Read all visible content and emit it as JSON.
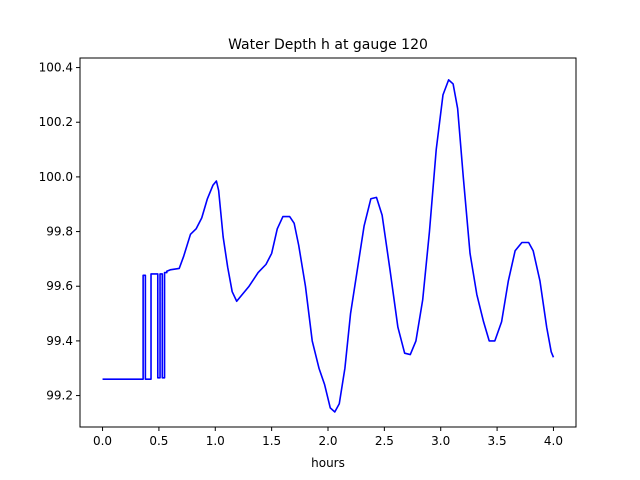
{
  "chart_data": {
    "type": "line",
    "title": "Water Depth h at gauge 120",
    "xlabel": "hours",
    "ylabel": "",
    "xlim": [
      -0.2,
      4.2
    ],
    "ylim": [
      99.085,
      100.435
    ],
    "xticks": [
      0.0,
      0.5,
      1.0,
      1.5,
      2.0,
      2.5,
      3.0,
      3.5,
      4.0
    ],
    "xtick_labels": [
      "0.0",
      "0.5",
      "1.0",
      "1.5",
      "2.0",
      "2.5",
      "3.0",
      "3.5",
      "4.0"
    ],
    "yticks": [
      99.2,
      99.4,
      99.6,
      99.8,
      100.0,
      100.2,
      100.4
    ],
    "ytick_labels": [
      "99.2",
      "99.4",
      "99.6",
      "99.8",
      "100.0",
      "100.2",
      "100.4"
    ],
    "grid": false,
    "series": [
      {
        "color": "#0000ff",
        "x": [
          0.0,
          0.36,
          0.36,
          0.38,
          0.38,
          0.43,
          0.43,
          0.49,
          0.49,
          0.51,
          0.51,
          0.53,
          0.53,
          0.55,
          0.55,
          0.57,
          0.57,
          0.6,
          0.68,
          0.72,
          0.78,
          0.83,
          0.88,
          0.93,
          0.98,
          1.01,
          1.03,
          1.07,
          1.11,
          1.15,
          1.19,
          1.22,
          1.3,
          1.38,
          1.45,
          1.5,
          1.55,
          1.6,
          1.66,
          1.7,
          1.74,
          1.8,
          1.86,
          1.92,
          1.97,
          2.02,
          2.06,
          2.1,
          2.15,
          2.2,
          2.26,
          2.32,
          2.38,
          2.43,
          2.48,
          2.55,
          2.62,
          2.68,
          2.73,
          2.78,
          2.84,
          2.9,
          2.96,
          3.02,
          3.07,
          3.11,
          3.15,
          3.2,
          3.26,
          3.32,
          3.38,
          3.43,
          3.48,
          3.54,
          3.6,
          3.66,
          3.72,
          3.78,
          3.82,
          3.88,
          3.94,
          3.98,
          4.0
        ],
        "y": [
          99.26,
          99.26,
          99.64,
          99.64,
          99.26,
          99.26,
          99.645,
          99.645,
          99.265,
          99.265,
          99.645,
          99.645,
          99.265,
          99.265,
          99.65,
          99.65,
          99.655,
          99.66,
          99.665,
          99.71,
          99.79,
          99.81,
          99.85,
          99.92,
          99.97,
          99.985,
          99.95,
          99.78,
          99.67,
          99.58,
          99.545,
          99.56,
          99.6,
          99.65,
          99.68,
          99.72,
          99.81,
          99.855,
          99.855,
          99.83,
          99.75,
          99.6,
          99.4,
          99.3,
          99.24,
          99.155,
          99.14,
          99.17,
          99.3,
          99.5,
          99.66,
          99.82,
          99.92,
          99.925,
          99.86,
          99.66,
          99.45,
          99.355,
          99.35,
          99.4,
          99.55,
          99.8,
          100.1,
          100.3,
          100.355,
          100.34,
          100.25,
          100.0,
          99.72,
          99.57,
          99.47,
          99.4,
          99.4,
          99.47,
          99.62,
          99.73,
          99.76,
          99.76,
          99.73,
          99.62,
          99.45,
          99.36,
          99.34
        ]
      }
    ]
  }
}
